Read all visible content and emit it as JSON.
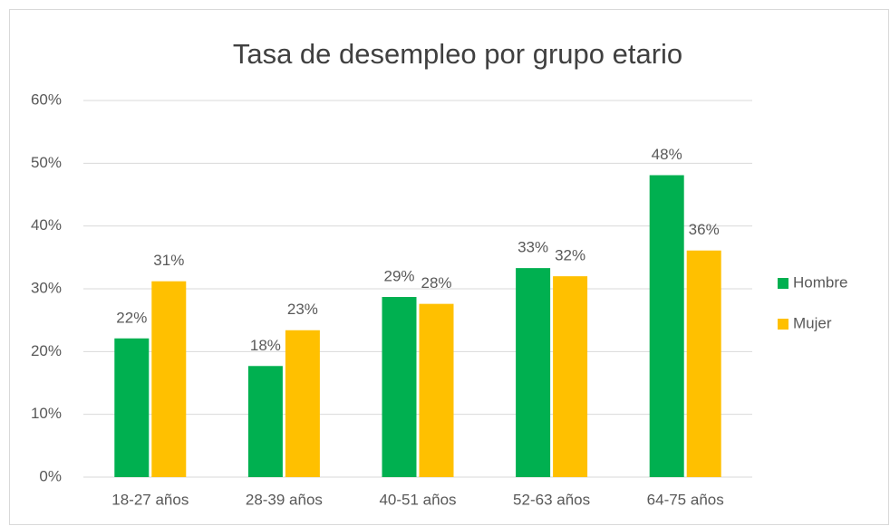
{
  "chart_data": {
    "type": "bar",
    "title": "Tasa de desempleo por grupo etario",
    "categories": [
      "18-27 años",
      "28-39 años",
      "40-51 años",
      "52-63 años",
      "64-75 años"
    ],
    "series": [
      {
        "name": "Hombre",
        "color": "#00b050",
        "values": [
          22.1,
          17.7,
          28.7,
          33.3,
          48.1
        ],
        "value_labels": [
          "22%",
          "18%",
          "29%",
          "33%",
          "48%"
        ]
      },
      {
        "name": "Mujer",
        "color": "#ffc000",
        "values": [
          31.2,
          23.4,
          27.6,
          32.0,
          36.1
        ],
        "value_labels": [
          "31%",
          "23%",
          "28%",
          "32%",
          "36%"
        ]
      }
    ],
    "ylim": [
      0,
      60
    ],
    "yticks": [
      {
        "value": 0,
        "label": "0%"
      },
      {
        "value": 10,
        "label": "10%"
      },
      {
        "value": 20,
        "label": "20%"
      },
      {
        "value": 30,
        "label": "30%"
      },
      {
        "value": 40,
        "label": "40%"
      },
      {
        "value": 50,
        "label": "50%"
      },
      {
        "value": 60,
        "label": "60%"
      }
    ],
    "grid": true,
    "legend": "right"
  }
}
